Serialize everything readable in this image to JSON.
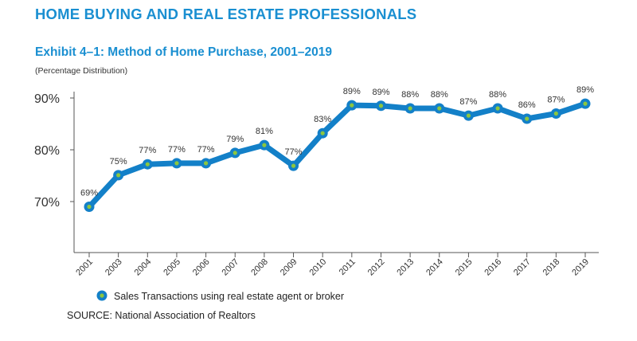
{
  "header": {
    "section_title": "HOME BUYING AND REAL ESTATE PROFESSIONALS",
    "exhibit_title": "Exhibit 4–1:  Method of Home Purchase, 2001–2019",
    "subtitle": "(Percentage Distribution)"
  },
  "source": "SOURCE: National Association of Realtors",
  "colors": {
    "title": "#1a8fd1",
    "line": "#1380c8",
    "marker_dot": "#8cc63f"
  },
  "chart_data": {
    "type": "line",
    "title": "Method of Home Purchase, 2001–2019",
    "xlabel": "",
    "ylabel": "",
    "ylim": [
      61,
      91
    ],
    "yticks": [
      70,
      80,
      90
    ],
    "ytick_labels": [
      "70%",
      "80%",
      "90%"
    ],
    "grid": false,
    "legend_position": "bottom-left",
    "categories": [
      "2001",
      "2003",
      "2004",
      "2005",
      "2006",
      "2007",
      "2008",
      "2009",
      "2010",
      "2011",
      "2012",
      "2013",
      "2014",
      "2015",
      "2016",
      "2017",
      "2018",
      "2019"
    ],
    "series": [
      {
        "name": "Sales Transactions using real estate agent or broker",
        "values": [
          69,
          75,
          77,
          77,
          77,
          79,
          81,
          77,
          83,
          89,
          89,
          88,
          88,
          87,
          88,
          86,
          87,
          89
        ],
        "plot_values": [
          69,
          75.1,
          77.2,
          77.4,
          77.4,
          79.4,
          80.9,
          76.9,
          83.2,
          88.6,
          88.5,
          88.0,
          88.0,
          86.6,
          88.0,
          86.0,
          87.0,
          88.9
        ],
        "data_labels": [
          "69%",
          "75%",
          "77%",
          "77%",
          "77%",
          "79%",
          "81%",
          "77%",
          "83%",
          "89%",
          "89%",
          "88%",
          "88%",
          "87%",
          "88%",
          "86%",
          "87%",
          "89%"
        ]
      }
    ]
  }
}
